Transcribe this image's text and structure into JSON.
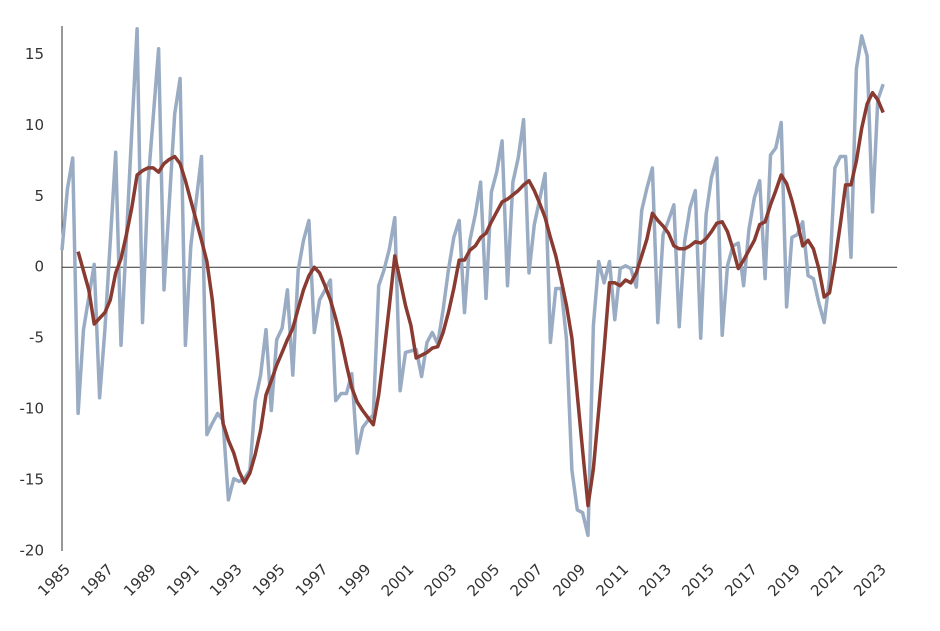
{
  "chart_data": {
    "type": "line",
    "xlim": [
      1985,
      2023.8
    ],
    "ylim": [
      -20,
      17
    ],
    "xticks": [
      1985,
      1987,
      1989,
      1991,
      1993,
      1995,
      1997,
      1999,
      2001,
      2003,
      2005,
      2007,
      2009,
      2011,
      2013,
      2015,
      2017,
      2019,
      2021,
      2023
    ],
    "yticks": [
      -20,
      -15,
      -10,
      -5,
      0,
      5,
      10,
      15
    ],
    "zero_line": true,
    "series": [
      {
        "color": "#9aacc3",
        "x": [
          1985.0,
          1985.25,
          1985.5,
          1985.75,
          1986.0,
          1986.5,
          1986.75,
          1987.0,
          1987.5,
          1987.75,
          1988.25,
          1988.5,
          1988.75,
          1989.0,
          1989.5,
          1989.75,
          1990.25,
          1990.5,
          1990.75,
          1991.0,
          1991.5,
          1991.75,
          1992.0,
          1992.25,
          1992.5,
          1992.75,
          1993.0,
          1993.25,
          1993.5,
          1993.75,
          1994.0,
          1994.25,
          1994.5,
          1994.75,
          1995.0,
          1995.25,
          1995.5,
          1995.75,
          1996.0,
          1996.25,
          1996.5,
          1996.75,
          1997.0,
          1997.5,
          1997.75,
          1998.0,
          1998.25,
          1998.5,
          1998.75,
          1999.0,
          1999.25,
          1999.5,
          1999.75,
          2000.0,
          2000.25,
          2000.5,
          2000.75,
          2001.0,
          2001.5,
          2001.75,
          2002.0,
          2002.25,
          2002.5,
          2002.75,
          2003.0,
          2003.25,
          2003.5,
          2003.75,
          2004.0,
          2004.25,
          2004.5,
          2004.75,
          2005.0,
          2005.25,
          2005.5,
          2005.75,
          2006.0,
          2006.25,
          2006.5,
          2006.75,
          2007.0,
          2007.5,
          2007.75,
          2008.0,
          2008.25,
          2008.5,
          2008.75,
          2009.0,
          2009.25,
          2009.5,
          2009.75,
          2010.0,
          2010.25,
          2010.5,
          2010.75,
          2011.0,
          2011.25,
          2011.5,
          2011.75,
          2012.0,
          2012.25,
          2012.5,
          2012.75,
          2013.0,
          2013.25,
          2013.5,
          2013.75,
          2014.0,
          2014.25,
          2014.5,
          2014.75,
          2015.0,
          2015.25,
          2015.5,
          2015.75,
          2016.0,
          2016.25,
          2016.5,
          2016.75,
          2017.0,
          2017.25,
          2017.5,
          2017.75,
          2018.0,
          2018.25,
          2018.5,
          2018.75,
          2019.0,
          2019.25,
          2019.5,
          2019.75,
          2020.0,
          2020.25,
          2020.5,
          2020.75,
          2021.0,
          2021.25,
          2021.5,
          2021.75,
          2022.0,
          2022.25,
          2022.5,
          2022.75,
          2023.0,
          2023.25
        ],
        "values": [
          1.2,
          5.5,
          7.7,
          -10.3,
          -4.4,
          0.2,
          -9.2,
          -4.4,
          8.1,
          -5.5,
          9.6,
          16.8,
          -3.9,
          5.8,
          15.4,
          -1.6,
          10.8,
          13.3,
          -5.5,
          1.5,
          7.8,
          -11.8,
          -11.0,
          -10.3,
          -10.8,
          -16.4,
          -14.9,
          -15.1,
          -14.9,
          -14.3,
          -9.4,
          -7.6,
          -4.4,
          -10.1,
          -5.1,
          -4.3,
          -1.6,
          -7.6,
          -0.2,
          1.9,
          3.3,
          -4.6,
          -2.3,
          -0.9,
          -9.4,
          -8.9,
          -8.9,
          -7.5,
          -13.1,
          -11.3,
          -10.8,
          -10.4,
          -1.3,
          -0.2,
          1.3,
          3.5,
          -8.7,
          -6.0,
          -5.8,
          -7.7,
          -5.3,
          -4.6,
          -5.4,
          -3.0,
          -0.2,
          2.1,
          3.3,
          -3.2,
          1.9,
          3.7,
          6.0,
          -2.2,
          5.3,
          6.7,
          8.9,
          -1.3,
          6.0,
          7.7,
          10.4,
          -0.4,
          3.0,
          6.6,
          -5.3,
          -1.5,
          -1.5,
          -5.1,
          -14.3,
          -17.1,
          -17.3,
          -18.9,
          -4.1,
          0.4,
          -1.1,
          0.4,
          -3.7,
          -0.1,
          0.1,
          -0.1,
          -1.4,
          4.0,
          5.6,
          7.0,
          -3.9,
          2.3,
          3.3,
          4.4,
          -4.2,
          1.8,
          4.2,
          5.4,
          -5.0,
          3.7,
          6.3,
          7.7,
          -4.8,
          0.1,
          1.5,
          1.7,
          -1.3,
          2.7,
          4.9,
          6.1,
          -0.8,
          7.9,
          8.4,
          10.2,
          -2.8,
          2.1,
          2.3,
          3.2,
          -0.6,
          -0.8,
          -2.5,
          -3.9,
          -0.8,
          7.0,
          7.8,
          7.8,
          0.7,
          14.0,
          16.3,
          14.9,
          3.9,
          11.8,
          12.9
        ]
      },
      {
        "color": "#8a3b31",
        "x": [
          1985.75,
          1986.25,
          1986.5,
          1987.0,
          1987.25,
          1987.5,
          1987.75,
          1988.0,
          1988.25,
          1988.5,
          1988.75,
          1989.0,
          1989.25,
          1989.5,
          1989.75,
          1990.0,
          1990.25,
          1990.5,
          1990.75,
          1991.0,
          1991.25,
          1991.5,
          1991.75,
          1992.0,
          1992.25,
          1992.5,
          1992.75,
          1993.0,
          1993.25,
          1993.5,
          1993.75,
          1994.0,
          1994.25,
          1994.5,
          1994.75,
          1995.0,
          1995.25,
          1995.5,
          1995.75,
          1996.0,
          1996.25,
          1996.5,
          1996.75,
          1997.0,
          1997.25,
          1997.5,
          1997.75,
          1998.0,
          1998.25,
          1998.5,
          1998.75,
          1999.0,
          1999.25,
          1999.5,
          1999.75,
          2000.0,
          2000.25,
          2000.5,
          2000.75,
          2001.0,
          2001.25,
          2001.5,
          2001.75,
          2002.0,
          2002.25,
          2002.5,
          2002.75,
          2003.0,
          2003.25,
          2003.5,
          2003.75,
          2004.0,
          2004.25,
          2004.5,
          2004.75,
          2005.0,
          2005.25,
          2005.5,
          2005.75,
          2006.0,
          2006.25,
          2006.5,
          2006.75,
          2007.0,
          2007.25,
          2007.5,
          2007.75,
          2008.0,
          2008.25,
          2008.5,
          2008.75,
          2009.0,
          2009.25,
          2009.5,
          2009.75,
          2010.0,
          2010.25,
          2010.5,
          2010.75,
          2011.0,
          2011.25,
          2011.5,
          2011.75,
          2012.0,
          2012.25,
          2012.5,
          2012.75,
          2013.0,
          2013.25,
          2013.5,
          2013.75,
          2014.0,
          2014.25,
          2014.5,
          2014.75,
          2015.0,
          2015.25,
          2015.5,
          2015.75,
          2016.0,
          2016.25,
          2016.5,
          2016.75,
          2017.0,
          2017.25,
          2017.5,
          2017.75,
          2018.0,
          2018.25,
          2018.5,
          2018.75,
          2019.0,
          2019.25,
          2019.5,
          2019.75,
          2020.0,
          2020.25,
          2020.5,
          2020.75,
          2021.0,
          2021.25,
          2021.5,
          2021.75,
          2022.0,
          2022.25,
          2022.5,
          2022.75,
          2023.0,
          2023.25
        ],
        "values": [
          1.1,
          -1.6,
          -4.0,
          -3.2,
          -2.3,
          -0.4,
          0.6,
          2.3,
          4.2,
          6.5,
          6.8,
          7.0,
          7.0,
          6.7,
          7.3,
          7.6,
          7.8,
          7.3,
          6.1,
          4.7,
          3.3,
          1.9,
          0.4,
          -2.3,
          -6.4,
          -11.0,
          -12.2,
          -13.1,
          -14.4,
          -15.2,
          -14.5,
          -13.2,
          -11.5,
          -9.0,
          -8.0,
          -6.9,
          -6.0,
          -5.1,
          -4.3,
          -2.9,
          -1.6,
          -0.6,
          0.0,
          -0.4,
          -1.3,
          -2.3,
          -3.6,
          -5.1,
          -6.9,
          -8.5,
          -9.5,
          -10.1,
          -10.6,
          -11.1,
          -9.0,
          -6.0,
          -2.7,
          0.8,
          -0.9,
          -2.7,
          -4.1,
          -6.4,
          -6.2,
          -6.0,
          -5.7,
          -5.6,
          -4.6,
          -3.2,
          -1.5,
          0.5,
          0.5,
          1.2,
          1.5,
          2.1,
          2.4,
          3.2,
          3.9,
          4.6,
          4.8,
          5.1,
          5.4,
          5.8,
          6.1,
          5.4,
          4.5,
          3.5,
          2.1,
          0.8,
          -0.9,
          -2.7,
          -5.0,
          -9.0,
          -12.9,
          -16.8,
          -14.2,
          -10.1,
          -5.8,
          -1.1,
          -1.1,
          -1.3,
          -0.9,
          -1.1,
          -0.4,
          0.8,
          2.0,
          3.8,
          3.3,
          2.9,
          2.4,
          1.5,
          1.3,
          1.3,
          1.5,
          1.8,
          1.7,
          2.0,
          2.5,
          3.1,
          3.2,
          2.5,
          1.3,
          -0.1,
          0.5,
          1.2,
          1.9,
          3.0,
          3.2,
          4.4,
          5.4,
          6.5,
          5.9,
          4.7,
          3.2,
          1.5,
          1.9,
          1.3,
          -0.1,
          -2.1,
          -1.8,
          0.4,
          3.0,
          5.8,
          5.8,
          7.5,
          9.8,
          11.5,
          12.3,
          11.8,
          10.9
        ]
      }
    ]
  }
}
